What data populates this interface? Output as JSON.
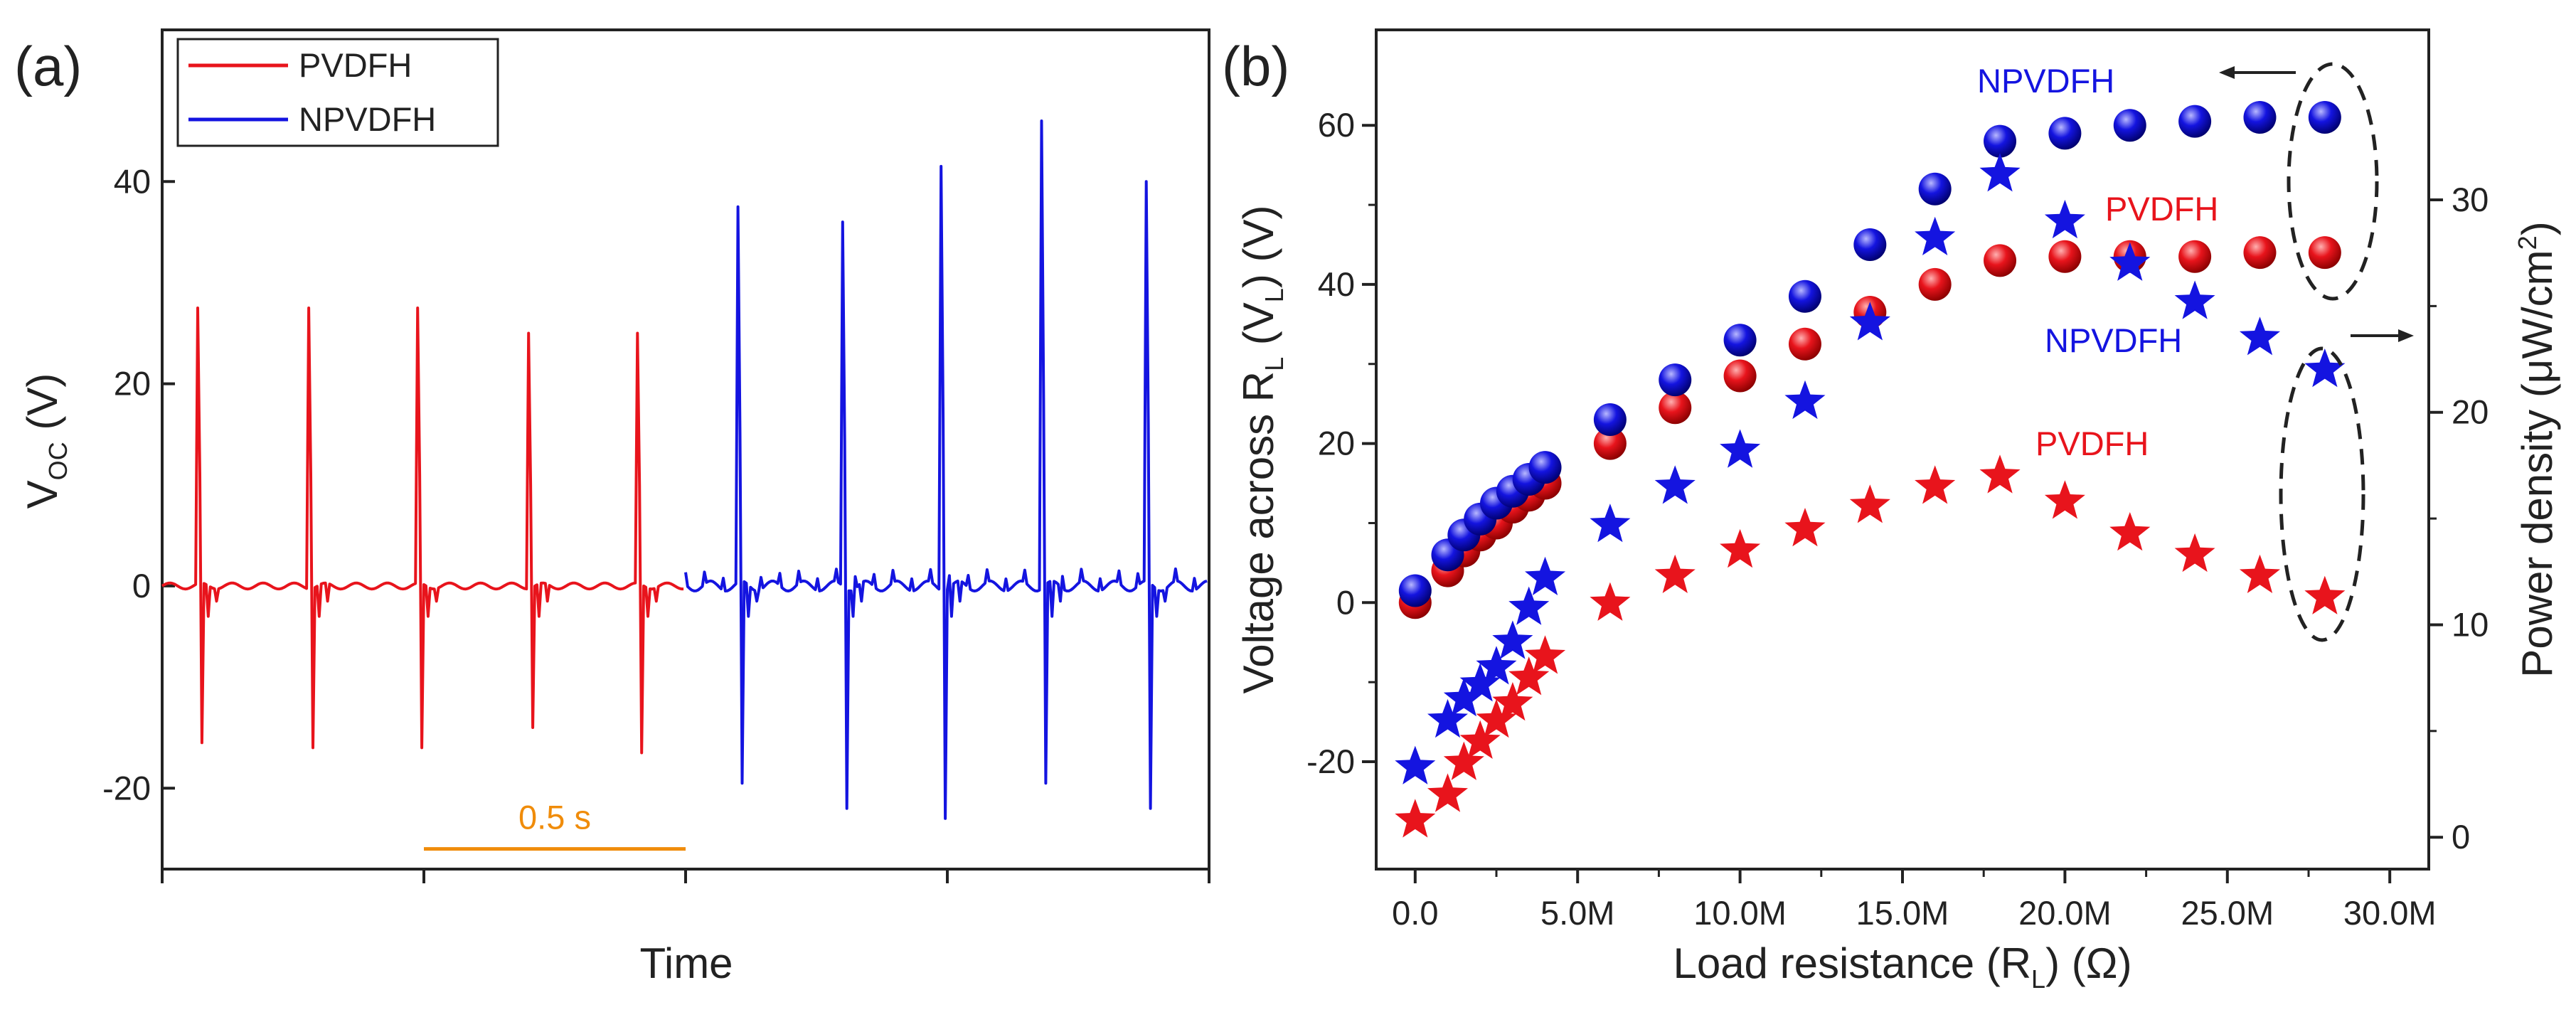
{
  "panels": {
    "a": {
      "label": "(a)"
    },
    "b": {
      "label": "(b)"
    }
  },
  "colors": {
    "pvdfh": "#e8141c",
    "npvdfh": "#1414e0",
    "scalebar": "#f08c0a",
    "axis": "#222222"
  },
  "chart_data": [
    {
      "type": "line",
      "title": "",
      "xlabel": "Time",
      "ylabel": {
        "main": "V",
        "sub": "OC",
        "unit": " (V)"
      },
      "ylim": [
        -28,
        55
      ],
      "yticks": [
        -20,
        0,
        20,
        40
      ],
      "ytick_labels": [
        "-20",
        "0",
        "20",
        "40"
      ],
      "x_unit": "s",
      "xlim": [
        0,
        2.0
      ],
      "scale_bar": {
        "label": "0.5 s",
        "length": 0.5,
        "y": -26
      },
      "legend": [
        "PVDFH",
        "NPVDFH"
      ],
      "legend_position": "top-left",
      "series": [
        {
          "name": "PVDFH",
          "color": "#e8141c",
          "segment": [
            0,
            1.0
          ],
          "spike_times": [
            0.07,
            0.28,
            0.49,
            0.7,
            0.91
          ],
          "peaks": [
            27.5,
            27.5,
            27.5,
            25,
            25
          ],
          "troughs": [
            -15.5,
            -16,
            -16,
            -14,
            -16.5
          ]
        },
        {
          "name": "NPVDFH",
          "color": "#1414e0",
          "segment": [
            1.0,
            2.0
          ],
          "spike_times": [
            1.1,
            1.3,
            1.49,
            1.68,
            1.88
          ],
          "peaks": [
            37.5,
            36,
            41.5,
            46,
            40
          ],
          "troughs": [
            -19.5,
            -22,
            -23,
            -19.5,
            -22
          ]
        }
      ]
    },
    {
      "type": "scatter",
      "title": "",
      "xlabel": {
        "main": "Load resistance (R",
        "sub": "L",
        "unit": ") (Ω)"
      },
      "ylabel": {
        "main": "Voltage across R",
        "sub": "L",
        "mid": " (V",
        "sub2": "L",
        "unit": ") (V)"
      },
      "y2label": {
        "main": "Power density (μW/cm",
        "sup": "2",
        "unit": ")"
      },
      "xlim": [
        -1.2,
        31.2
      ],
      "ylim": [
        -33.5,
        72
      ],
      "y2lim": [
        -1.5,
        38
      ],
      "xticks": [
        0,
        5,
        10,
        15,
        20,
        25,
        30
      ],
      "xtick_labels": [
        "0.0",
        "5.0M",
        "10.0M",
        "15.0M",
        "20.0M",
        "25.0M",
        "30.0M"
      ],
      "yticks": [
        -20,
        0,
        20,
        40,
        60
      ],
      "ytick_labels": [
        "-20",
        "0",
        "20",
        "40",
        "60"
      ],
      "y2ticks": [
        0,
        10,
        20,
        30
      ],
      "y2tick_labels": [
        "0",
        "10",
        "20",
        "30"
      ],
      "x": [
        0,
        1,
        1.5,
        2,
        2.5,
        3,
        3.5,
        4,
        6,
        8,
        10,
        12,
        14,
        16,
        18,
        20,
        22,
        24,
        26,
        28
      ],
      "series": [
        {
          "name": "NPVDFH voltage",
          "axis": "left",
          "marker": "sphere",
          "color": "#1414e0",
          "values": [
            1.5,
            6,
            8.5,
            10.5,
            12.5,
            14,
            15.5,
            17,
            23,
            28,
            33,
            38.5,
            45,
            52,
            58,
            59,
            60,
            60.5,
            61,
            61
          ]
        },
        {
          "name": "PVDFH voltage",
          "axis": "left",
          "marker": "sphere",
          "color": "#e8141c",
          "values": [
            0,
            4,
            6.5,
            8.5,
            10,
            12,
            13.5,
            15,
            20,
            24.5,
            28.5,
            32.5,
            36.5,
            40,
            43,
            43.5,
            43.5,
            43.5,
            44,
            44
          ]
        },
        {
          "name": "NPVDFH power",
          "axis": "right",
          "marker": "star",
          "color": "#1414e0",
          "values": [
            3.3,
            5.5,
            6.5,
            7.2,
            8,
            9.2,
            10.8,
            12.2,
            14.7,
            16.5,
            18.2,
            20.5,
            24.2,
            28.2,
            31.2,
            29,
            27,
            25.2,
            23.5,
            22
          ]
        },
        {
          "name": "PVDFH power",
          "axis": "right",
          "marker": "star",
          "color": "#e8141c",
          "values": [
            0.8,
            2,
            3.5,
            4.5,
            5.5,
            6.3,
            7.5,
            8.5,
            11,
            12.3,
            13.5,
            14.5,
            15.6,
            16.5,
            17,
            15.8,
            14.3,
            13.3,
            12.3,
            11.3
          ]
        }
      ],
      "annotations": [
        {
          "text": "NPVDFH",
          "color": "#1414e0",
          "near": "upper voltage series"
        },
        {
          "text": "PVDFH",
          "color": "#e8141c",
          "near": "lower voltage series"
        },
        {
          "text": "NPVDFH",
          "color": "#1414e0",
          "near": "upper power series"
        },
        {
          "text": "PVDFH",
          "color": "#e8141c",
          "near": "lower power series"
        }
      ]
    }
  ]
}
